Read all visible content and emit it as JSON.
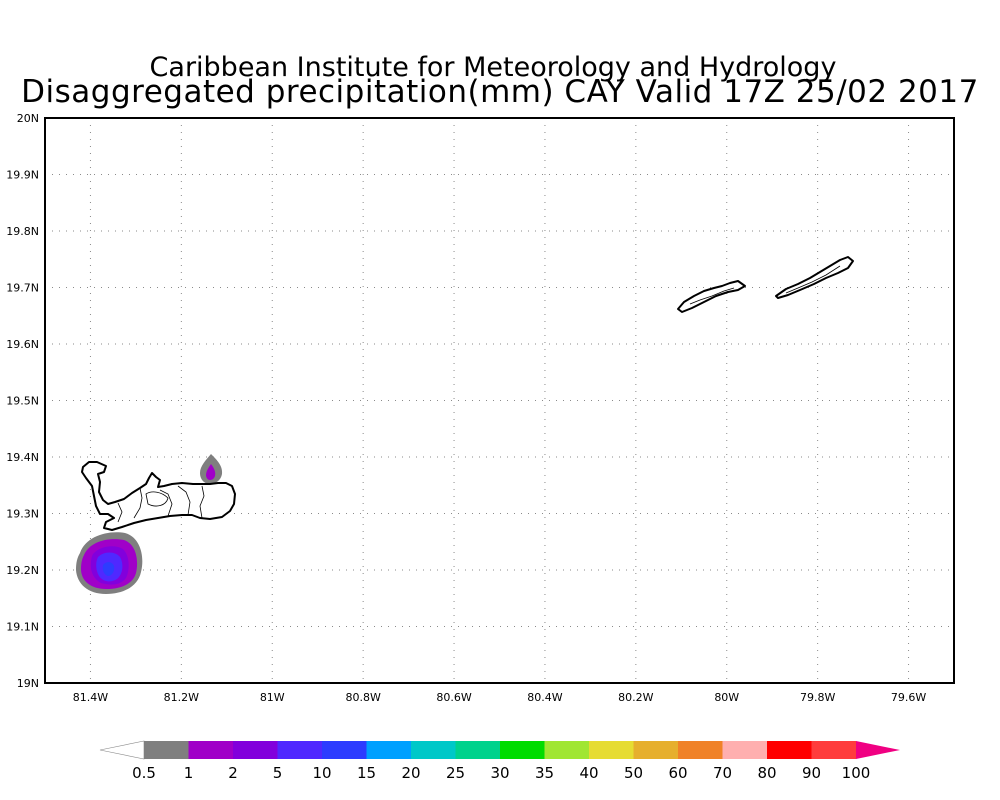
{
  "title": {
    "line1": "Caribbean Institute for Meteorology and Hydrology",
    "line2": "Disaggregated precipitation(mm) CAY Valid 17Z 25/02 2017"
  },
  "map": {
    "lon_range": [
      -81.5,
      -79.5
    ],
    "lat_range": [
      19.0,
      20.0
    ],
    "lon_ticks": [
      {
        "value": -81.4,
        "label": "81.4W"
      },
      {
        "value": -81.2,
        "label": "81.2W"
      },
      {
        "value": -81.0,
        "label": "81W"
      },
      {
        "value": -80.8,
        "label": "80.8W"
      },
      {
        "value": -80.6,
        "label": "80.6W"
      },
      {
        "value": -80.4,
        "label": "80.4W"
      },
      {
        "value": -80.2,
        "label": "80.2W"
      },
      {
        "value": -80.0,
        "label": "80W"
      },
      {
        "value": -79.8,
        "label": "79.8W"
      },
      {
        "value": -79.6,
        "label": "79.6W"
      }
    ],
    "lat_ticks": [
      {
        "value": 20.0,
        "label": "20N"
      },
      {
        "value": 19.9,
        "label": "19.9N"
      },
      {
        "value": 19.8,
        "label": "19.8N"
      },
      {
        "value": 19.7,
        "label": "19.7N"
      },
      {
        "value": 19.6,
        "label": "19.6N"
      },
      {
        "value": 19.5,
        "label": "19.5N"
      },
      {
        "value": 19.4,
        "label": "19.4N"
      },
      {
        "value": 19.3,
        "label": "19.3N"
      },
      {
        "value": 19.2,
        "label": "19.2N"
      },
      {
        "value": 19.1,
        "label": "19.1N"
      },
      {
        "value": 19.0,
        "label": "19N"
      }
    ],
    "gridlines": true,
    "features": [
      {
        "name": "grand-cayman-island"
      },
      {
        "name": "little-cayman-island"
      },
      {
        "name": "cayman-brac-island"
      },
      {
        "name": "precip-area-southwest",
        "levels_mm": [
          0.5,
          1,
          2,
          5,
          10
        ],
        "peak_lon": -81.36,
        "peak_lat": 19.2
      },
      {
        "name": "precip-area-north-sound",
        "levels_mm": [
          0.5,
          1
        ],
        "peak_lon": -81.13,
        "peak_lat": 19.375
      }
    ]
  },
  "colorbar": {
    "levels": [
      "0.5",
      "1",
      "2",
      "5",
      "10",
      "15",
      "20",
      "25",
      "30",
      "35",
      "40",
      "50",
      "60",
      "70",
      "80",
      "90",
      "100"
    ],
    "colors": [
      "#ffffff",
      "#7f7f7f",
      "#a000c8",
      "#8200dc",
      "#5028ff",
      "#2d3cff",
      "#00a0ff",
      "#00c8c8",
      "#00d28c",
      "#00dc00",
      "#a0e632",
      "#e6dc32",
      "#e6af2d",
      "#f08228",
      "#ffafaf",
      "#ff0000",
      "#ff3c3c",
      "#f00082"
    ]
  }
}
